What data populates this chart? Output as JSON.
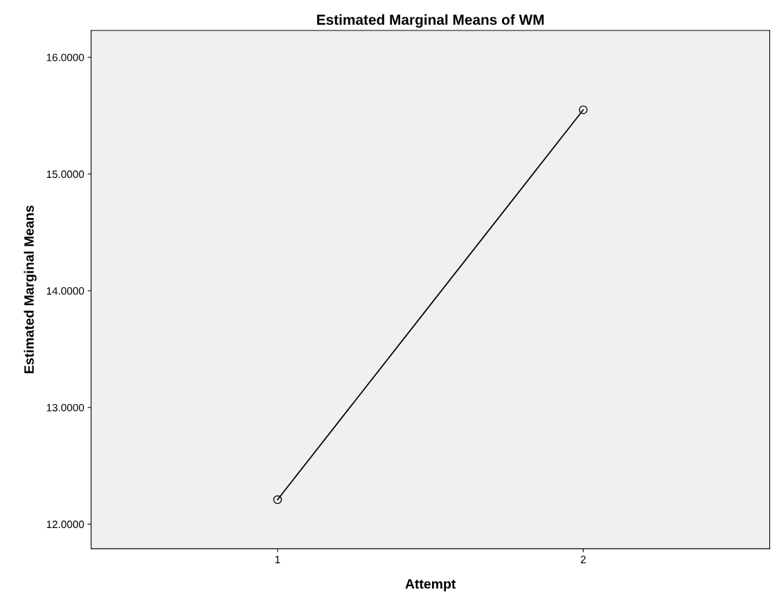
{
  "chart_data": {
    "type": "line",
    "title": "Estimated Marginal Means of WM",
    "xlabel": "Attempt",
    "ylabel": "Estimated Marginal Means",
    "categories": [
      "1",
      "2"
    ],
    "series": [
      {
        "color": "#000000",
        "values": [
          12.21,
          15.55
        ]
      }
    ],
    "marker": "circle",
    "line_style": "solid",
    "grid": false,
    "ylim": [
      11.79,
      16.23
    ],
    "yticks": [
      {
        "value": 12,
        "label": "12.0000"
      },
      {
        "value": 13,
        "label": "13.0000"
      },
      {
        "value": 14,
        "label": "14.0000"
      },
      {
        "value": 15,
        "label": "15.0000"
      },
      {
        "value": 16,
        "label": "16.0000"
      }
    ]
  }
}
